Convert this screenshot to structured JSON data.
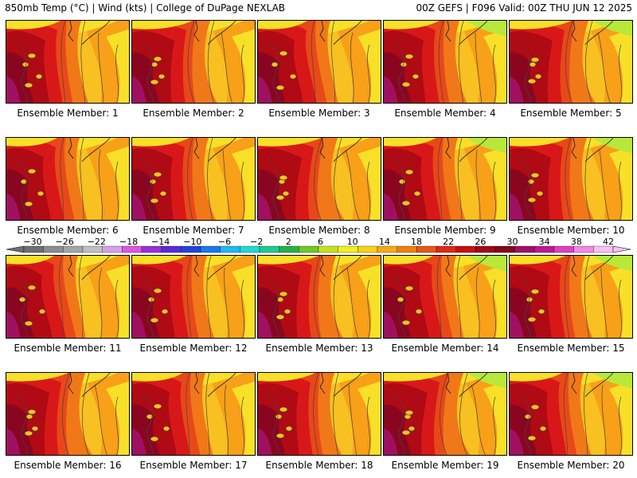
{
  "header": {
    "left": "850mb Temp (°C) | Wind (kts) | College of DuPage NEXLAB",
    "right": "00Z GEFS | F096 Valid: 00Z THU JUN 12 2025"
  },
  "caption_prefix": "Ensemble Member: ",
  "members": [
    1,
    2,
    3,
    4,
    5,
    6,
    7,
    8,
    9,
    10,
    11,
    12,
    13,
    14,
    15,
    16,
    17,
    18,
    19,
    20
  ],
  "colorbar": {
    "labels": [
      "−30",
      "−26",
      "−22",
      "−18",
      "−14",
      "−10",
      "−6",
      "−2",
      "2",
      "6",
      "10",
      "14",
      "18",
      "22",
      "26",
      "30",
      "34",
      "38",
      "42"
    ],
    "values": [
      -30,
      -26,
      -22,
      -18,
      -14,
      -10,
      -6,
      -2,
      2,
      6,
      10,
      14,
      18,
      22,
      26,
      30,
      34,
      38,
      42
    ],
    "colors": [
      "#6e6e6e",
      "#8c8c8c",
      "#a5a5a5",
      "#bfbfbf",
      "#d6a0e6",
      "#e055e0",
      "#9b30d9",
      "#5a2bd4",
      "#2244dd",
      "#1a78e8",
      "#22b8f0",
      "#22d8d0",
      "#20c890",
      "#28b048",
      "#70c828",
      "#c8e020",
      "#f0f020",
      "#f8d018",
      "#f8a818",
      "#f08010",
      "#e85818",
      "#e02818",
      "#c81010",
      "#a00818",
      "#800818",
      "#a01068",
      "#c01890",
      "#e040c0",
      "#f088e0",
      "#f8c0f0"
    ]
  },
  "map_palette": {
    "lime": "#b8e83a",
    "yellow": "#f8e028",
    "gold": "#f8c020",
    "orange": "#f8a018",
    "dark_orange": "#f07818",
    "red_orange": "#e84818",
    "red": "#d81818",
    "dark_red": "#b00a14",
    "maroon": "#8a0620",
    "magenta": "#a01060"
  }
}
